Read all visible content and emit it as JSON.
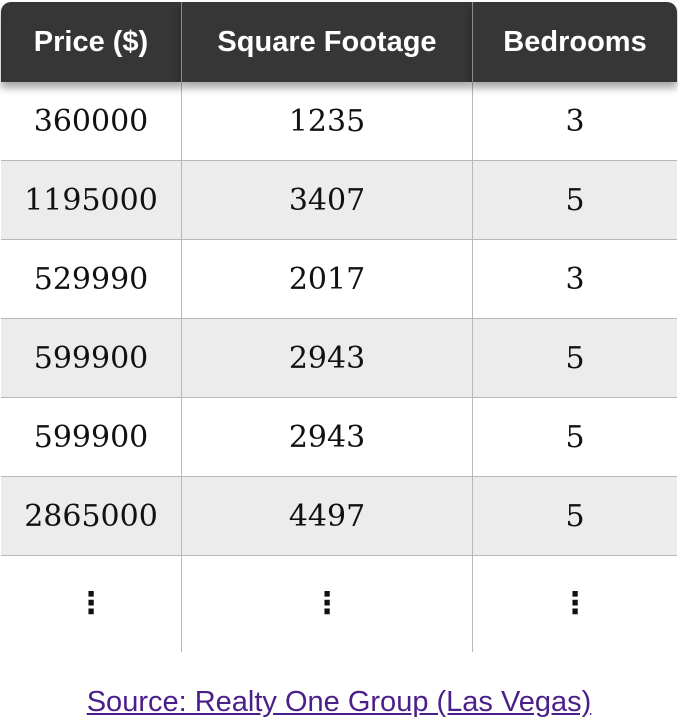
{
  "table": {
    "headers": [
      "Price ($)",
      "Square Footage",
      "Bedrooms"
    ],
    "rows": [
      [
        "360000",
        "1235",
        "3"
      ],
      [
        "1195000",
        "3407",
        "5"
      ],
      [
        "529990",
        "2017",
        "3"
      ],
      [
        "599900",
        "2943",
        "5"
      ],
      [
        "599900",
        "2943",
        "5"
      ],
      [
        "2865000",
        "4497",
        "5"
      ]
    ],
    "ellipsis": [
      "⋮",
      "⋮",
      "⋮"
    ]
  },
  "source_link": "Source: Realty One Group (Las Vegas)",
  "colors": {
    "header_bg": "#363636",
    "header_text": "#ffffff",
    "alt_row_bg": "#ececec",
    "link": "#4b1f8a"
  }
}
